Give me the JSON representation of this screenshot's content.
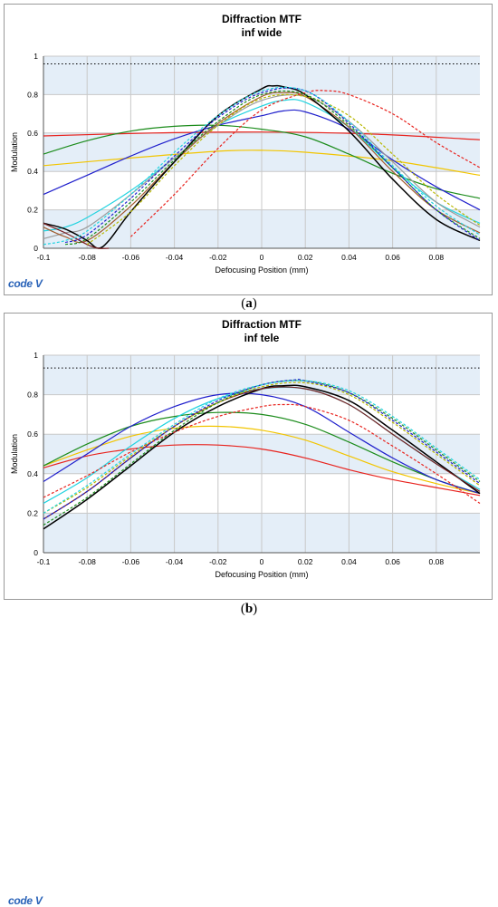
{
  "logo_text": "code V",
  "chart_data": [
    {
      "type": "line",
      "title": "Diffraction MTF",
      "subtitle": "inf wide",
      "xlabel": "Defocusing Position (mm)",
      "ylabel": "Modulation",
      "xlim": [
        -0.1,
        0.1
      ],
      "ylim": [
        0,
        1
      ],
      "x_ticks": [
        "-0.1",
        "-0.08",
        "-0.06",
        "-0.04",
        "-0.02",
        "0",
        "0.02",
        "0.04",
        "0.06",
        "0.08"
      ],
      "y_ticks": [
        "0",
        "0.2",
        "0.4",
        "0.6",
        "0.8",
        "1"
      ],
      "grid": true,
      "sub_label": "a",
      "reference_line": 0.96,
      "series": [
        {
          "color": "#e8231e",
          "dash": false,
          "x": [
            -0.1,
            -0.05,
            0,
            0.05,
            0.1
          ],
          "y": [
            0.585,
            0.6,
            0.605,
            0.595,
            0.565
          ]
        },
        {
          "color": "#f2c500",
          "dash": false,
          "x": [
            -0.1,
            -0.06,
            -0.02,
            0,
            0.02,
            0.06,
            0.1
          ],
          "y": [
            0.43,
            0.47,
            0.505,
            0.51,
            0.5,
            0.455,
            0.38
          ]
        },
        {
          "color": "#1c8c1c",
          "dash": false,
          "x": [
            -0.1,
            -0.08,
            -0.06,
            -0.04,
            -0.02,
            0,
            0.02,
            0.04,
            0.06,
            0.08,
            0.1
          ],
          "y": [
            0.49,
            0.56,
            0.61,
            0.635,
            0.64,
            0.62,
            0.58,
            0.49,
            0.39,
            0.31,
            0.26
          ]
        },
        {
          "color": "#1f1fcc",
          "dash": false,
          "x": [
            -0.1,
            -0.08,
            -0.06,
            -0.04,
            -0.02,
            0,
            0.01,
            0.02,
            0.04,
            0.06,
            0.08,
            0.1
          ],
          "y": [
            0.28,
            0.38,
            0.48,
            0.57,
            0.64,
            0.69,
            0.715,
            0.71,
            0.62,
            0.46,
            0.32,
            0.2
          ]
        },
        {
          "color": "#22d3e0",
          "dash": false,
          "x": [
            -0.1,
            -0.09,
            -0.08,
            -0.06,
            -0.04,
            -0.02,
            0,
            0.01,
            0.02,
            0.04,
            0.06,
            0.08,
            0.1
          ],
          "y": [
            0.09,
            0.11,
            0.16,
            0.3,
            0.47,
            0.64,
            0.74,
            0.77,
            0.76,
            0.63,
            0.42,
            0.24,
            0.13
          ]
        },
        {
          "color": "#9b9b9b",
          "dash": false,
          "x": [
            -0.1,
            -0.09,
            -0.08,
            -0.06,
            -0.04,
            -0.02,
            0,
            0.02,
            0.04,
            0.06,
            0.08,
            0.1
          ],
          "y": [
            0.05,
            0.08,
            0.11,
            0.28,
            0.47,
            0.64,
            0.77,
            0.79,
            0.66,
            0.45,
            0.24,
            0.11
          ]
        },
        {
          "color": "#a05a2c",
          "dash": false,
          "x": [
            -0.1,
            -0.09,
            -0.08,
            -0.06,
            -0.04,
            -0.02,
            0,
            0.01,
            0.02,
            0.04,
            0.06,
            0.08,
            0.1
          ],
          "y": [
            0.11,
            0.06,
            0.04,
            0.22,
            0.45,
            0.65,
            0.79,
            0.81,
            0.79,
            0.63,
            0.4,
            0.2,
            0.08
          ]
        },
        {
          "color": "#000000",
          "dash": false,
          "x": [
            -0.1,
            -0.09,
            -0.08,
            -0.075,
            -0.07,
            -0.06,
            -0.04,
            -0.02,
            0,
            0.005,
            0.01,
            0.02,
            0.04,
            0.06,
            0.08,
            0.1
          ],
          "y": [
            0.13,
            0.1,
            0.04,
            0.0,
            0.04,
            0.19,
            0.45,
            0.69,
            0.83,
            0.845,
            0.84,
            0.8,
            0.61,
            0.36,
            0.15,
            0.04
          ]
        },
        {
          "color": "#7a1f1f",
          "dash": false,
          "x": [
            -0.1,
            -0.09,
            -0.08,
            -0.075,
            -0.07
          ],
          "y": [
            0.13,
            0.08,
            0.02,
            0.0,
            0.0
          ]
        },
        {
          "color": "#e8231e",
          "dash": true,
          "x": [
            -0.06,
            -0.04,
            -0.02,
            0,
            0.02,
            0.03,
            0.04,
            0.06,
            0.08,
            0.1
          ],
          "y": [
            0.06,
            0.28,
            0.52,
            0.72,
            0.81,
            0.82,
            0.8,
            0.7,
            0.55,
            0.42
          ]
        },
        {
          "color": "#b7b700",
          "dash": true,
          "x": [
            -0.08,
            -0.06,
            -0.04,
            -0.02,
            0,
            0.02,
            0.04,
            0.06,
            0.08,
            0.1
          ],
          "y": [
            0.02,
            0.19,
            0.43,
            0.64,
            0.78,
            0.79,
            0.69,
            0.49,
            0.28,
            0.12
          ]
        },
        {
          "color": "#1c8c1c",
          "dash": true,
          "x": [
            -0.09,
            -0.08,
            -0.06,
            -0.04,
            -0.02,
            0,
            0.02,
            0.04,
            0.06,
            0.08,
            0.1
          ],
          "y": [
            0.02,
            0.05,
            0.24,
            0.46,
            0.66,
            0.8,
            0.8,
            0.64,
            0.42,
            0.2,
            0.05
          ]
        },
        {
          "color": "#1f1fcc",
          "dash": true,
          "x": [
            -0.09,
            -0.08,
            -0.06,
            -0.04,
            -0.02,
            0,
            0.02,
            0.04,
            0.06,
            0.08,
            0.1
          ],
          "y": [
            0.03,
            0.07,
            0.26,
            0.48,
            0.68,
            0.81,
            0.82,
            0.65,
            0.42,
            0.2,
            0.04
          ]
        },
        {
          "color": "#22d3e0",
          "dash": true,
          "x": [
            -0.1,
            -0.09,
            -0.08,
            -0.06,
            -0.04,
            -0.02,
            0,
            0.02,
            0.04,
            0.06,
            0.08,
            0.1
          ],
          "y": [
            0.02,
            0.04,
            0.09,
            0.28,
            0.5,
            0.69,
            0.82,
            0.82,
            0.66,
            0.43,
            0.22,
            0.07
          ]
        }
      ]
    },
    {
      "type": "line",
      "title": "Diffraction MTF",
      "subtitle": "inf tele",
      "xlabel": "Defocusing Position (mm)",
      "ylabel": "Modulation",
      "xlim": [
        -0.1,
        0.1
      ],
      "ylim": [
        0,
        1
      ],
      "x_ticks": [
        "-0.1",
        "-0.08",
        "-0.06",
        "-0.04",
        "-0.02",
        "0",
        "0.02",
        "0.04",
        "0.06",
        "0.08"
      ],
      "y_ticks": [
        "0",
        "0.2",
        "0.4",
        "0.6",
        "0.8",
        "1"
      ],
      "grid": true,
      "sub_label": "b",
      "reference_line": 0.935,
      "series": [
        {
          "color": "#e8231e",
          "dash": false,
          "x": [
            -0.1,
            -0.08,
            -0.06,
            -0.04,
            -0.02,
            0,
            0.02,
            0.04,
            0.06,
            0.08,
            0.1
          ],
          "y": [
            0.43,
            0.49,
            0.525,
            0.545,
            0.545,
            0.525,
            0.48,
            0.42,
            0.37,
            0.33,
            0.29
          ]
        },
        {
          "color": "#f2c500",
          "dash": false,
          "x": [
            -0.1,
            -0.08,
            -0.06,
            -0.04,
            -0.02,
            0,
            0.02,
            0.04,
            0.06,
            0.08,
            0.1
          ],
          "y": [
            0.44,
            0.52,
            0.59,
            0.63,
            0.64,
            0.62,
            0.57,
            0.49,
            0.41,
            0.35,
            0.3
          ]
        },
        {
          "color": "#1c8c1c",
          "dash": false,
          "x": [
            -0.1,
            -0.08,
            -0.06,
            -0.04,
            -0.02,
            0,
            0.02,
            0.04,
            0.06,
            0.08,
            0.1
          ],
          "y": [
            0.44,
            0.55,
            0.64,
            0.69,
            0.71,
            0.7,
            0.65,
            0.56,
            0.46,
            0.37,
            0.3
          ]
        },
        {
          "color": "#1f1fcc",
          "dash": false,
          "x": [
            -0.1,
            -0.08,
            -0.06,
            -0.04,
            -0.02,
            0,
            0.02,
            0.04,
            0.06,
            0.08,
            0.1
          ],
          "y": [
            0.36,
            0.5,
            0.64,
            0.74,
            0.8,
            0.8,
            0.74,
            0.61,
            0.48,
            0.37,
            0.3
          ]
        },
        {
          "color": "#22d3e0",
          "dash": false,
          "x": [
            -0.1,
            -0.08,
            -0.06,
            -0.04,
            -0.02,
            0,
            0.02,
            0.04,
            0.06,
            0.08,
            0.1
          ],
          "y": [
            0.25,
            0.38,
            0.54,
            0.68,
            0.78,
            0.83,
            0.83,
            0.75,
            0.6,
            0.45,
            0.32
          ]
        },
        {
          "color": "#000000",
          "dash": false,
          "x": [
            -0.1,
            -0.08,
            -0.06,
            -0.04,
            -0.02,
            0,
            0.01,
            0.02,
            0.04,
            0.06,
            0.08,
            0.1
          ],
          "y": [
            0.12,
            0.27,
            0.44,
            0.61,
            0.74,
            0.83,
            0.845,
            0.84,
            0.77,
            0.62,
            0.46,
            0.3
          ]
        },
        {
          "color": "#7a1f1f",
          "dash": false,
          "x": [
            -0.1,
            -0.08,
            -0.06,
            -0.04,
            -0.02,
            0,
            0.02,
            0.04,
            0.06,
            0.08,
            0.1
          ],
          "y": [
            0.17,
            0.31,
            0.48,
            0.64,
            0.76,
            0.83,
            0.83,
            0.75,
            0.6,
            0.45,
            0.31
          ]
        },
        {
          "color": "#e8231e",
          "dash": true,
          "x": [
            -0.1,
            -0.08,
            -0.06,
            -0.04,
            -0.02,
            0,
            0.01,
            0.02,
            0.04,
            0.06,
            0.08,
            0.1
          ],
          "y": [
            0.28,
            0.39,
            0.51,
            0.61,
            0.69,
            0.74,
            0.75,
            0.74,
            0.67,
            0.54,
            0.4,
            0.25
          ]
        },
        {
          "color": "#b7b700",
          "dash": true,
          "x": [
            -0.1,
            -0.08,
            -0.06,
            -0.04,
            -0.02,
            0,
            0.02,
            0.04,
            0.06,
            0.08,
            0.1
          ],
          "y": [
            0.2,
            0.33,
            0.49,
            0.64,
            0.76,
            0.84,
            0.86,
            0.8,
            0.66,
            0.5,
            0.34
          ]
        },
        {
          "color": "#1c8c1c",
          "dash": true,
          "x": [
            -0.1,
            -0.08,
            -0.06,
            -0.04,
            -0.02,
            0,
            0.02,
            0.04,
            0.06,
            0.08,
            0.1
          ],
          "y": [
            0.14,
            0.28,
            0.45,
            0.62,
            0.76,
            0.85,
            0.87,
            0.81,
            0.68,
            0.52,
            0.36
          ]
        },
        {
          "color": "#1f1fcc",
          "dash": true,
          "x": [
            -0.1,
            -0.08,
            -0.06,
            -0.04,
            -0.02,
            0,
            0.015,
            0.02,
            0.04,
            0.06,
            0.08,
            0.1
          ],
          "y": [
            0.17,
            0.31,
            0.48,
            0.64,
            0.77,
            0.85,
            0.875,
            0.87,
            0.81,
            0.67,
            0.51,
            0.35
          ]
        },
        {
          "color": "#22d3e0",
          "dash": true,
          "x": [
            -0.1,
            -0.08,
            -0.06,
            -0.04,
            -0.02,
            0,
            0.02,
            0.04,
            0.06,
            0.08,
            0.1
          ],
          "y": [
            0.2,
            0.34,
            0.5,
            0.65,
            0.78,
            0.85,
            0.87,
            0.82,
            0.69,
            0.53,
            0.37
          ]
        }
      ]
    }
  ]
}
